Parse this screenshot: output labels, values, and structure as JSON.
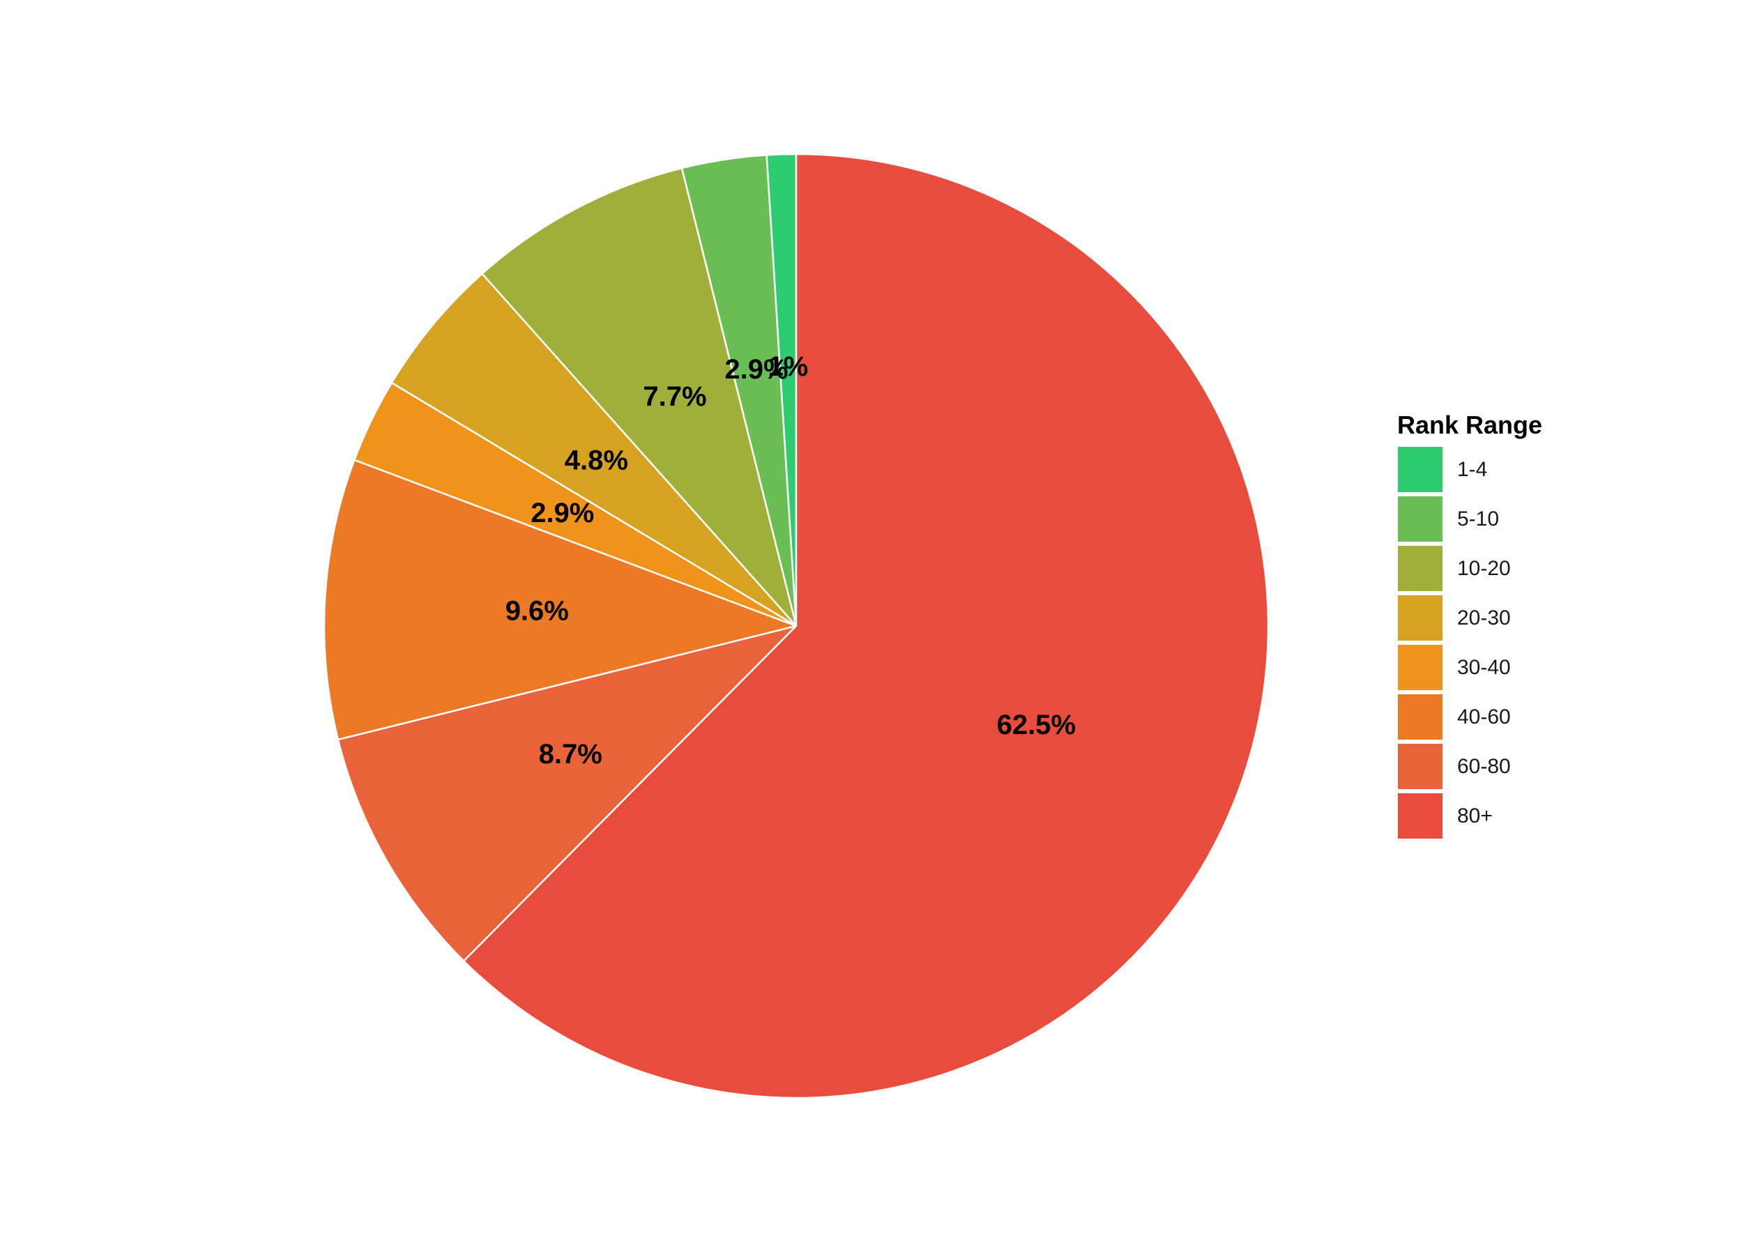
{
  "chart_data": {
    "type": "pie",
    "title": "",
    "start": "top",
    "direction": "counterclockwise",
    "categories": [
      "1-4",
      "5-10",
      "10-20",
      "20-30",
      "30-40",
      "40-60",
      "60-80",
      "80+"
    ],
    "values": [
      1.0,
      2.9,
      7.7,
      4.8,
      2.9,
      9.6,
      8.7,
      62.5
    ],
    "labels": [
      "1%",
      "2.9%",
      "7.7%",
      "4.8%",
      "2.9%",
      "9.6%",
      "8.7%",
      "62.5%"
    ],
    "colors": [
      "#2ecc71",
      "#6abf54",
      "#a0af3a",
      "#d6a321",
      "#f0931a",
      "#ec7a24",
      "#e8623a",
      "#e74c3c"
    ],
    "legend": {
      "title": "Rank Range",
      "position": "right"
    }
  }
}
